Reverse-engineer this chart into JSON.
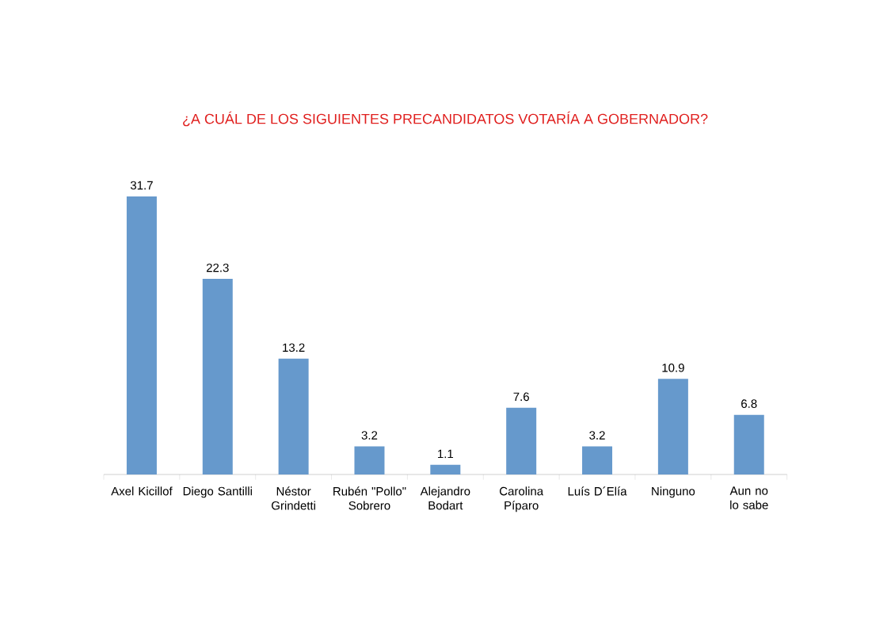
{
  "chart_data": {
    "type": "bar",
    "title": "¿A CUÁL DE LOS SIGUIENTES PRECANDIDATOS VOTARÍA A GOBERNADOR?",
    "categories": [
      "Axel Kicillof",
      "Diego Santilli",
      "Néstor Grindetti",
      "Rubén \"Pollo\" Sobrero",
      "Alejandro Bodart",
      "Carolina Píparo",
      "Luís D´Elía",
      "Ninguno",
      "Aun no lo sabe"
    ],
    "values": [
      31.7,
      22.3,
      13.2,
      3.2,
      1.1,
      7.6,
      3.2,
      10.9,
      6.8
    ],
    "color": "#6699cc",
    "data_labels": true
  }
}
